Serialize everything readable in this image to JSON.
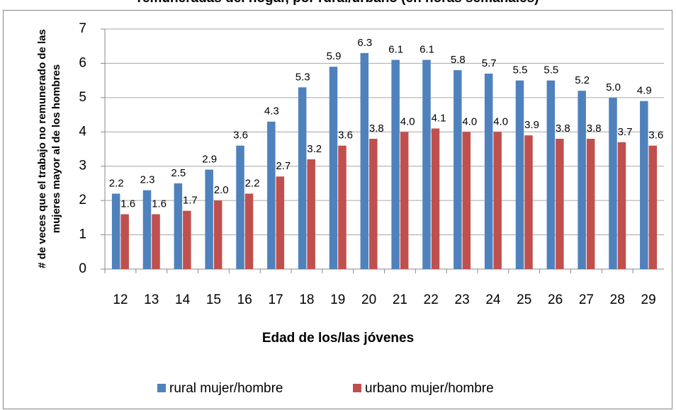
{
  "chart_data": {
    "type": "bar",
    "title": "remuneradas del hogar, por rural/urbano (en horas semanales)",
    "x_label": "Edad de los/las jóvenes",
    "y_label": [
      "# de veces que el trabajo no remunerado de las",
      "mujeres mayor al de los hombres"
    ],
    "categories": [
      "12",
      "13",
      "14",
      "15",
      "16",
      "17",
      "18",
      "19",
      "20",
      "21",
      "22",
      "23",
      "24",
      "25",
      "26",
      "27",
      "28",
      "29"
    ],
    "series": [
      {
        "name": "rural mujer/hombre",
        "color": "#4f81bd",
        "values": [
          2.2,
          2.3,
          2.5,
          2.9,
          3.6,
          4.3,
          5.3,
          5.9,
          6.3,
          6.1,
          6.1,
          5.8,
          5.7,
          5.5,
          5.5,
          5.2,
          5.0,
          4.9
        ],
        "value_labels": [
          "2.2",
          "2.3",
          "2.5",
          "2.9",
          "3.6",
          "4.3",
          "5.3",
          "5.9",
          "6.3",
          "6.1",
          "6.1",
          "5.8",
          "5.7",
          "5.5",
          "5.5",
          "5.2",
          "5.0",
          "4.9"
        ]
      },
      {
        "name": "urbano mujer/hombre",
        "color": "#c0504d",
        "values": [
          1.6,
          1.6,
          1.7,
          2.0,
          2.2,
          2.7,
          3.2,
          3.6,
          3.8,
          4.0,
          4.1,
          4.0,
          4.0,
          3.9,
          3.8,
          3.8,
          3.7,
          3.6
        ],
        "value_labels": [
          "1.6",
          "1.6",
          "1.7",
          "2.0",
          "2.2",
          "2.7",
          "3.2",
          "3.6",
          "3.8",
          "4.0",
          "4.1",
          "4.0",
          "4.0",
          "3.9",
          "3.8",
          "3.8",
          "3.7",
          "3.6"
        ]
      }
    ],
    "ylim": [
      0,
      7
    ],
    "yticks": [
      0,
      1,
      2,
      3,
      4,
      5,
      6,
      7
    ],
    "grid": true,
    "legend": "bottom"
  }
}
